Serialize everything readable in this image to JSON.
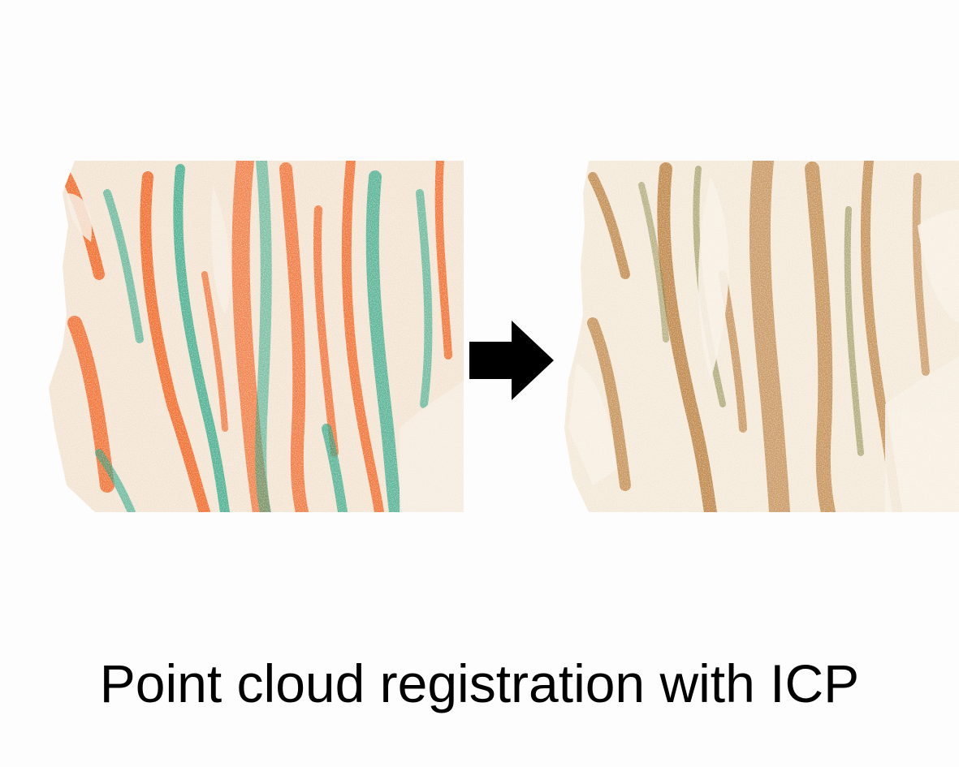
{
  "caption": "Point cloud registration with ICP",
  "panels": [
    {
      "id": "before",
      "state": "unaligned",
      "source_color": "#f05a14",
      "target_color": "#1aa07e"
    },
    {
      "id": "after",
      "state": "aligned",
      "source_color": "#c86a22",
      "target_color": "#6e8a3a"
    }
  ],
  "arrow_icon": "right-arrow-icon",
  "colors": {
    "background": "#fdfdfd",
    "rock_base": "#f2e6d4",
    "arrow": "#000000"
  }
}
